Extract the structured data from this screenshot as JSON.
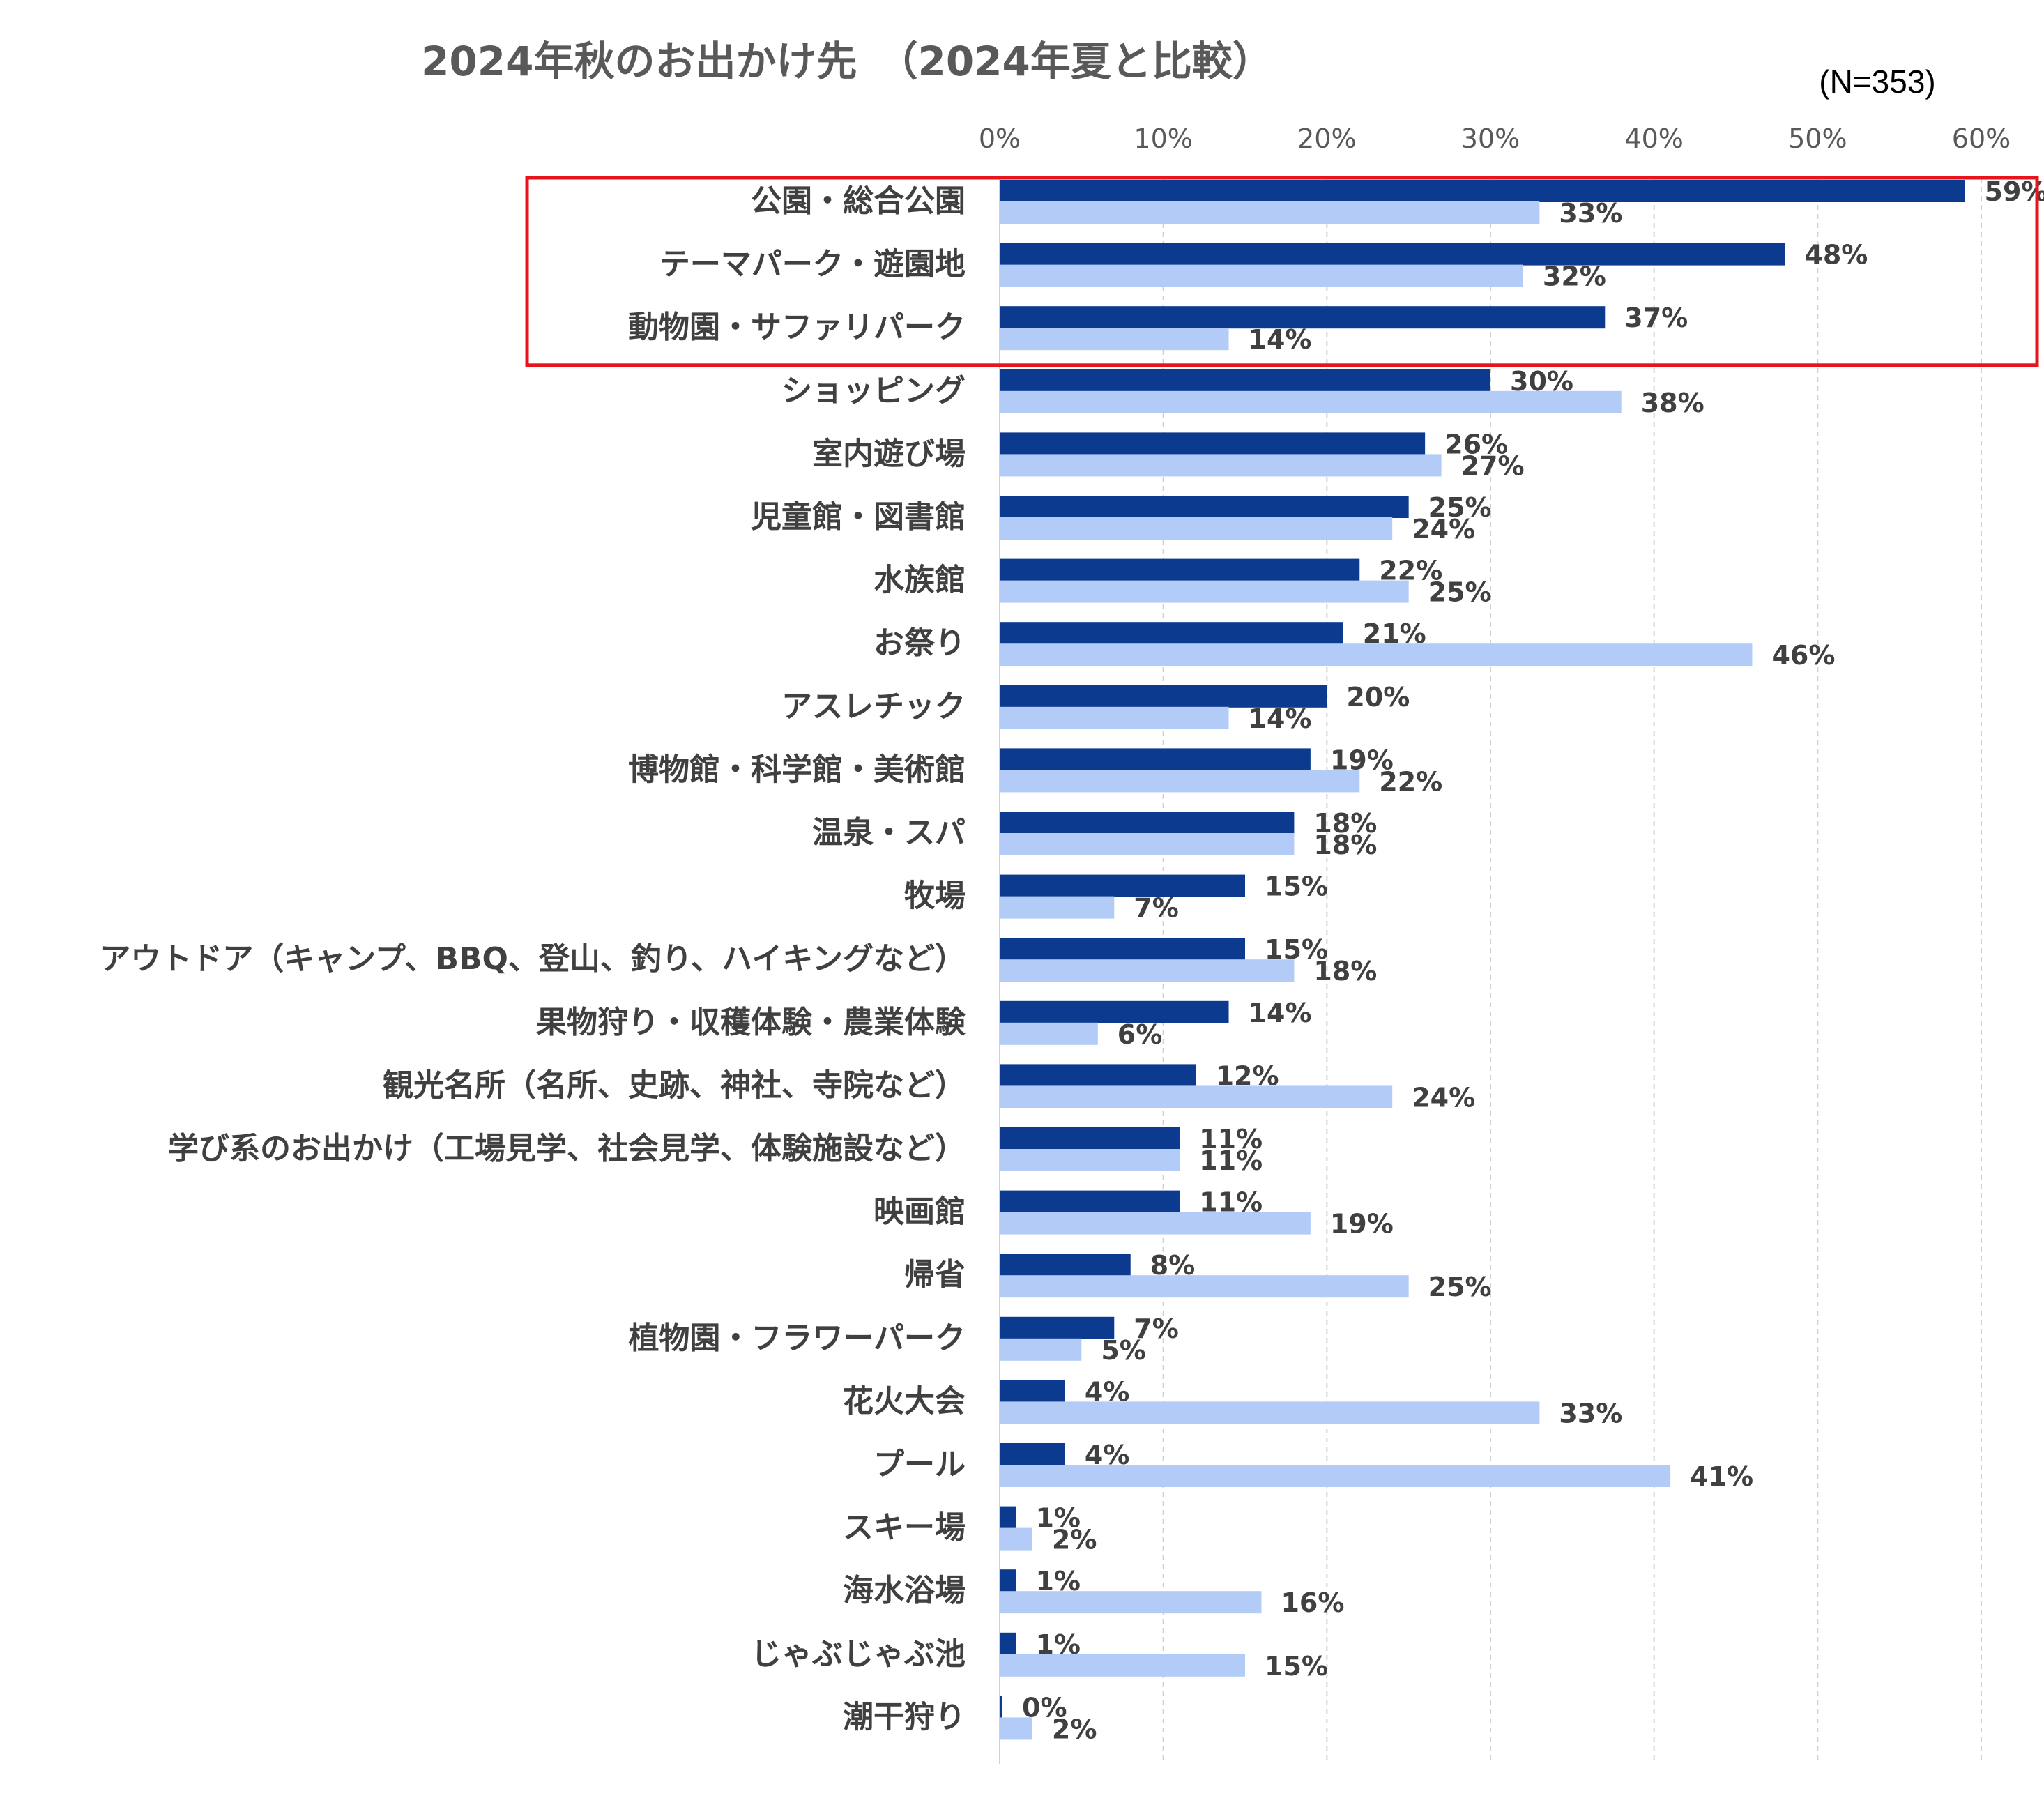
{
  "chart_data": {
    "type": "bar",
    "orientation": "horizontal",
    "title": "2024年秋のお出かけ先　（2024年夏と比較）",
    "note": "(N=353)",
    "xlim": [
      0,
      60
    ],
    "x_ticks": [
      "0%",
      "10%",
      "20%",
      "30%",
      "40%",
      "50%",
      "60%"
    ],
    "grid": "vertical dashed",
    "colors": {
      "series_autumn": "#0b3a8f",
      "series_summer": "#b3ccf7",
      "highlight_box": "#e8141c",
      "grid": "#d0d0d0"
    },
    "highlight": {
      "from_index": 0,
      "to_index": 2
    },
    "categories": [
      "公園・総合公園",
      "テーマパーク・遊園地",
      "動物園・サファリパーク",
      "ショッピング",
      "室内遊び場",
      "児童館・図書館",
      "水族館",
      "お祭り",
      "アスレチック",
      "博物館・科学館・美術館",
      "温泉・スパ",
      "牧場",
      "アウトドア（キャンプ、BBQ、登山、釣り、ハイキングなど）",
      "果物狩り・収穫体験・農業体験",
      "観光名所（名所、史跡、神社、寺院など）",
      "学び系のお出かけ（工場見学、社会見学、体験施設など）",
      "映画館",
      "帰省",
      "植物園・フラワーパーク",
      "花火大会",
      "プール",
      "スキー場",
      "海水浴場",
      "じゃぶじゃぶ池",
      "潮干狩り"
    ],
    "series": [
      {
        "values": [
          59,
          48,
          37,
          30,
          26,
          25,
          22,
          21,
          20,
          19,
          18,
          15,
          15,
          14,
          12,
          11,
          11,
          8,
          7,
          4,
          4,
          1,
          1,
          1,
          0
        ],
        "labels": [
          "59%",
          "48%",
          "37%",
          "30%",
          "26%",
          "25%",
          "22%",
          "21%",
          "20%",
          "19%",
          "18%",
          "15%",
          "15%",
          "14%",
          "12%",
          "11%",
          "11%",
          "8%",
          "7%",
          "4%",
          "4%",
          "1%",
          "1%",
          "1%",
          "0%"
        ]
      },
      {
        "values": [
          33,
          32,
          14,
          38,
          27,
          24,
          25,
          46,
          14,
          22,
          18,
          7,
          18,
          6,
          24,
          11,
          19,
          25,
          5,
          33,
          41,
          2,
          16,
          15,
          2
        ],
        "labels": [
          "33%",
          "32%",
          "14%",
          "38%",
          "27%",
          "24%",
          "25%",
          "46%",
          "14%",
          "22%",
          "18%",
          "7%",
          "18%",
          "6%",
          "24%",
          "11%",
          "19%",
          "25%",
          "5%",
          "33%",
          "41%",
          "2%",
          "16%",
          "15%",
          "2%"
        ]
      }
    ]
  }
}
